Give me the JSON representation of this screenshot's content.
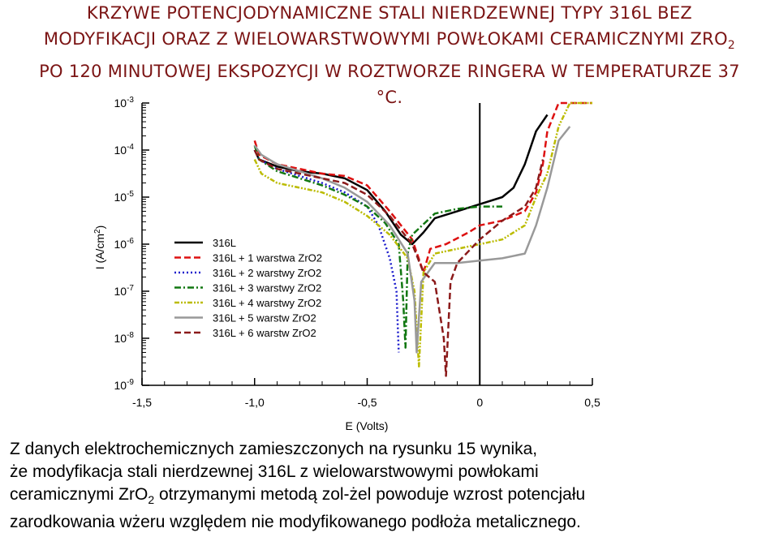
{
  "title": {
    "line1": "KRZYWE POTENCJODYNAMICZNE STALI NIERDZEWNEJ TYPY 316L BEZ",
    "line2_main": "MODYFIKACJI ORAZ Z WIELOWARSTWOWYMI POWŁOKAMI CERAMICZNYMI ZRO",
    "line2_sub": "2",
    "line3": "PO 120 MINUTOWEJ EKSPOZYCJI W ROZTWORZE RINGERA W TEMPERATURZE 37",
    "line4": "°C."
  },
  "caption": {
    "line1": "Z danych elektrochemicznych zamieszczonych na rysunku 15 wynika,",
    "line2": "że modyfikacja stali nierdzewnej 316L z wielowarstwowymi powłokami",
    "line3_a": "ceramicznymi ZrO",
    "line3_sub": "2",
    "line3_b": " otrzymanymi metodą zol-żel powoduje wzrost potencjału",
    "line4": "zarodkowania wżeru względem nie modyfikowanego podłoża metalicznego."
  },
  "chart_data": {
    "type": "line",
    "xlabel": "E (Volts)",
    "ylabel_main": "I (A/cm",
    "ylabel_sup": "2",
    "ylabel_close": ")",
    "xlim": [
      -1.5,
      0.5
    ],
    "ylim_log10": [
      -9,
      -3
    ],
    "yscale": "log",
    "x_ticks": [
      {
        "value": -1.5,
        "label": "-1,5"
      },
      {
        "value": -1.0,
        "label": "-1,0"
      },
      {
        "value": -0.5,
        "label": "-0,5"
      },
      {
        "value": 0.0,
        "label": "0"
      },
      {
        "value": 0.5,
        "label": "0,5"
      }
    ],
    "y_ticks": [
      {
        "exp": -3,
        "base": "10",
        "sup": "-3"
      },
      {
        "exp": -4,
        "base": "10",
        "sup": "-4"
      },
      {
        "exp": -5,
        "base": "10",
        "sup": "-5"
      },
      {
        "exp": -6,
        "base": "10",
        "sup": "-6"
      },
      {
        "exp": -7,
        "base": "10",
        "sup": "-7"
      },
      {
        "exp": -8,
        "base": "10",
        "sup": "-8"
      },
      {
        "exp": -9,
        "base": "10",
        "sup": "-9"
      }
    ],
    "vline_x": 0.0,
    "legend_position": "upper-left",
    "series": [
      {
        "name": "316L",
        "color": "#000000",
        "dash": "solid",
        "width": 2.5,
        "points": [
          [
            -1.0,
            -4.0
          ],
          [
            -0.98,
            -4.2
          ],
          [
            -0.9,
            -4.35
          ],
          [
            -0.8,
            -4.45
          ],
          [
            -0.7,
            -4.5
          ],
          [
            -0.6,
            -4.6
          ],
          [
            -0.5,
            -4.85
          ],
          [
            -0.42,
            -5.3
          ],
          [
            -0.35,
            -5.8
          ],
          [
            -0.3,
            -6.0
          ],
          [
            -0.25,
            -5.75
          ],
          [
            -0.2,
            -5.45
          ],
          [
            -0.1,
            -5.3
          ],
          [
            0.0,
            -5.15
          ],
          [
            0.1,
            -5.0
          ],
          [
            0.15,
            -4.8
          ],
          [
            0.2,
            -4.3
          ],
          [
            0.25,
            -3.6
          ],
          [
            0.3,
            -3.25
          ]
        ]
      },
      {
        "name": "316L + 1 warstwa ZrO2",
        "color": "#dd1111",
        "dash": "8,4",
        "width": 2.5,
        "points": [
          [
            -1.0,
            -3.8
          ],
          [
            -0.98,
            -4.1
          ],
          [
            -0.9,
            -4.3
          ],
          [
            -0.8,
            -4.4
          ],
          [
            -0.7,
            -4.5
          ],
          [
            -0.6,
            -4.55
          ],
          [
            -0.5,
            -4.75
          ],
          [
            -0.4,
            -5.3
          ],
          [
            -0.3,
            -5.9
          ],
          [
            -0.25,
            -6.6
          ],
          [
            -0.22,
            -6.1
          ],
          [
            -0.15,
            -6.0
          ],
          [
            -0.05,
            -5.75
          ],
          [
            0.0,
            -5.6
          ],
          [
            0.1,
            -5.5
          ],
          [
            0.2,
            -5.3
          ],
          [
            0.25,
            -4.9
          ],
          [
            0.28,
            -4.3
          ],
          [
            0.3,
            -3.6
          ],
          [
            0.35,
            -3.0
          ],
          [
            0.5,
            -3.0
          ]
        ]
      },
      {
        "name": "316L + 2 warstwy ZrO2",
        "color": "#1a1acc",
        "dash": "2,3",
        "width": 2.5,
        "points": [
          [
            -1.0,
            -4.0
          ],
          [
            -0.98,
            -4.2
          ],
          [
            -0.9,
            -4.4
          ],
          [
            -0.8,
            -4.55
          ],
          [
            -0.7,
            -4.7
          ],
          [
            -0.6,
            -4.9
          ],
          [
            -0.5,
            -5.2
          ],
          [
            -0.45,
            -5.6
          ],
          [
            -0.4,
            -6.3
          ],
          [
            -0.37,
            -7.0
          ],
          [
            -0.36,
            -8.3
          ]
        ]
      },
      {
        "name": "316L + 3 warstwy ZrO2",
        "color": "#117711",
        "dash": "8,3,2,3",
        "width": 2.5,
        "points": [
          [
            -1.0,
            -3.9
          ],
          [
            -0.98,
            -4.2
          ],
          [
            -0.9,
            -4.45
          ],
          [
            -0.8,
            -4.6
          ],
          [
            -0.7,
            -4.75
          ],
          [
            -0.6,
            -4.95
          ],
          [
            -0.5,
            -5.2
          ],
          [
            -0.42,
            -5.55
          ],
          [
            -0.36,
            -6.0
          ],
          [
            -0.34,
            -7.2
          ],
          [
            -0.33,
            -8.2
          ],
          [
            -0.32,
            -6.2
          ],
          [
            -0.3,
            -5.8
          ],
          [
            -0.2,
            -5.35
          ],
          [
            -0.1,
            -5.25
          ],
          [
            0.0,
            -5.2
          ],
          [
            0.1,
            -5.2
          ]
        ]
      },
      {
        "name": "316L + 4 warstwy ZrO2",
        "color": "#bbbb00",
        "dash": "6,2,2,2,2,2",
        "width": 2.5,
        "points": [
          [
            -1.0,
            -4.2
          ],
          [
            -0.97,
            -4.5
          ],
          [
            -0.9,
            -4.7
          ],
          [
            -0.8,
            -4.8
          ],
          [
            -0.7,
            -4.9
          ],
          [
            -0.6,
            -5.1
          ],
          [
            -0.5,
            -5.4
          ],
          [
            -0.4,
            -5.8
          ],
          [
            -0.32,
            -6.3
          ],
          [
            -0.29,
            -7.0
          ],
          [
            -0.27,
            -8.6
          ],
          [
            -0.25,
            -6.6
          ],
          [
            -0.2,
            -6.2
          ],
          [
            -0.1,
            -6.1
          ],
          [
            0.0,
            -6.0
          ],
          [
            0.1,
            -5.9
          ],
          [
            0.2,
            -5.6
          ],
          [
            0.25,
            -5.0
          ],
          [
            0.3,
            -4.5
          ],
          [
            0.35,
            -3.5
          ],
          [
            0.4,
            -3.0
          ],
          [
            0.5,
            -3.0
          ]
        ]
      },
      {
        "name": "316L + 5 warstw ZrO2",
        "color": "#999999",
        "dash": "solid",
        "width": 2.5,
        "points": [
          [
            -1.0,
            -3.9
          ],
          [
            -0.97,
            -4.1
          ],
          [
            -0.9,
            -4.3
          ],
          [
            -0.8,
            -4.45
          ],
          [
            -0.7,
            -4.6
          ],
          [
            -0.6,
            -4.8
          ],
          [
            -0.5,
            -5.1
          ],
          [
            -0.4,
            -5.6
          ],
          [
            -0.32,
            -6.2
          ],
          [
            -0.29,
            -7.2
          ],
          [
            -0.28,
            -8.3
          ],
          [
            -0.26,
            -6.8
          ],
          [
            -0.2,
            -6.4
          ],
          [
            -0.1,
            -6.4
          ],
          [
            0.0,
            -6.35
          ],
          [
            0.1,
            -6.3
          ],
          [
            0.2,
            -6.2
          ],
          [
            0.25,
            -5.6
          ],
          [
            0.3,
            -4.8
          ],
          [
            0.35,
            -3.8
          ],
          [
            0.4,
            -3.5
          ]
        ]
      },
      {
        "name": "316L + 6 warstw ZrO2",
        "color": "#8b1a1a",
        "dash": "8,4",
        "width": 2.5,
        "points": [
          [
            -1.0,
            -4.0
          ],
          [
            -0.98,
            -4.2
          ],
          [
            -0.9,
            -4.4
          ],
          [
            -0.8,
            -4.5
          ],
          [
            -0.7,
            -4.6
          ],
          [
            -0.6,
            -4.7
          ],
          [
            -0.5,
            -4.95
          ],
          [
            -0.4,
            -5.4
          ],
          [
            -0.3,
            -6.0
          ],
          [
            -0.25,
            -6.6
          ],
          [
            -0.2,
            -6.8
          ],
          [
            -0.16,
            -8.0
          ],
          [
            -0.15,
            -8.8
          ],
          [
            -0.13,
            -6.8
          ],
          [
            -0.1,
            -6.4
          ],
          [
            0.0,
            -5.9
          ],
          [
            0.1,
            -5.5
          ],
          [
            0.2,
            -5.2
          ],
          [
            0.25,
            -4.8
          ],
          [
            0.28,
            -4.2
          ]
        ]
      }
    ]
  }
}
